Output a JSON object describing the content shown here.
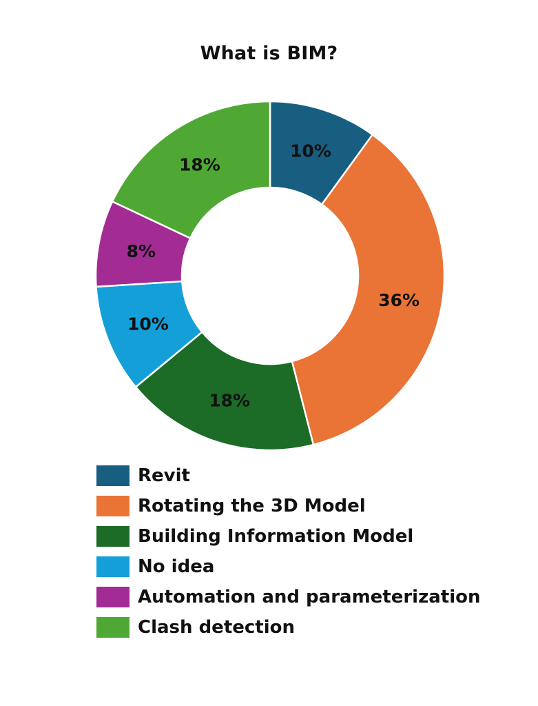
{
  "chart_data": {
    "type": "pie",
    "variant": "donut",
    "title": "What is BIM?",
    "categories": [
      "Revit",
      "Rotating the 3D Model",
      "Building Information Model",
      "No idea",
      "Automation and parameterization",
      "Clash detection"
    ],
    "values": [
      10,
      36,
      18,
      10,
      8,
      18
    ],
    "data_labels": [
      "10%",
      "36%",
      "18%",
      "10%",
      "8%",
      "18%"
    ],
    "colors": [
      "#185e80",
      "#ea7435",
      "#1c6b27",
      "#149fd9",
      "#a22c94",
      "#50a834"
    ],
    "legend": "bottom"
  }
}
